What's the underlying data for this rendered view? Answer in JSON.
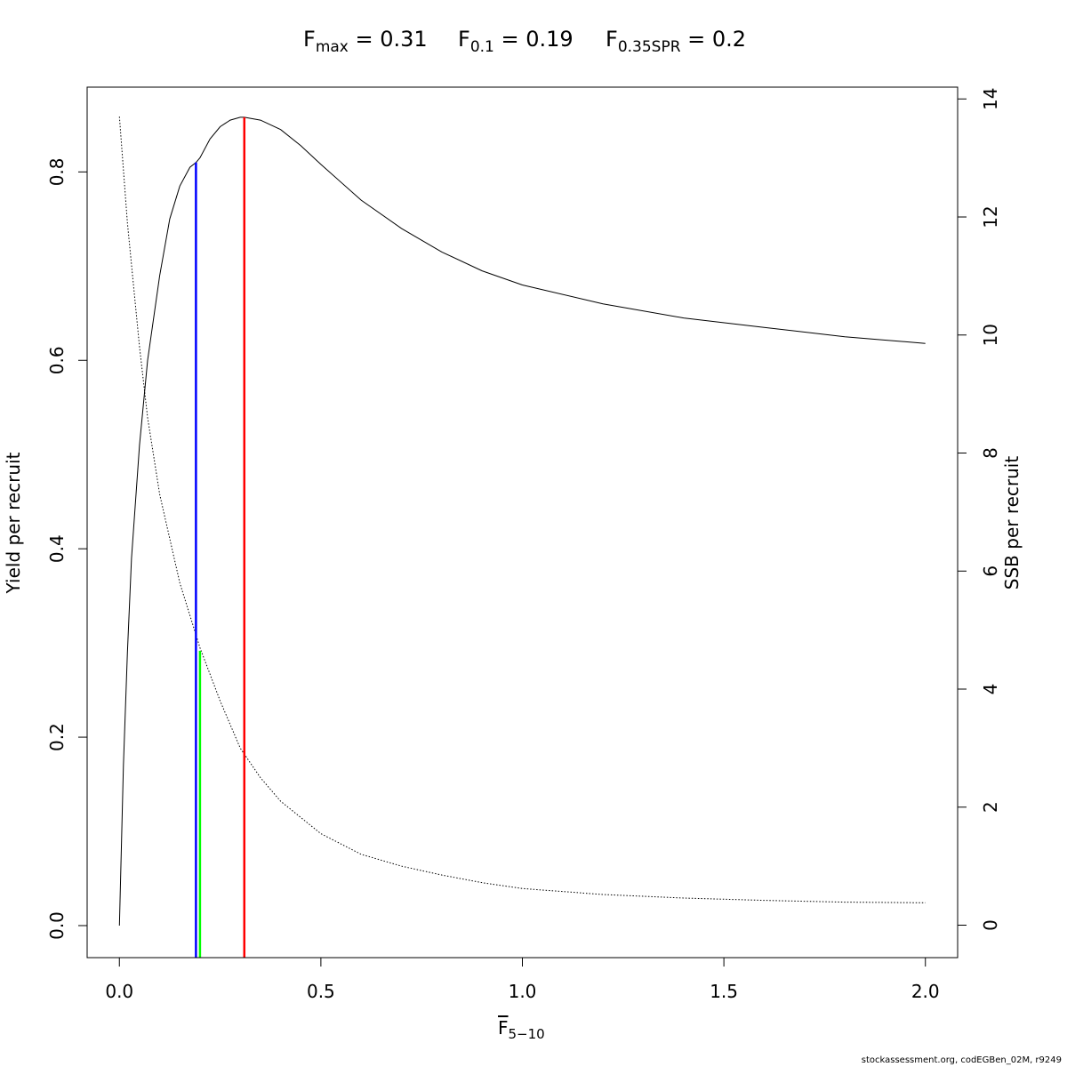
{
  "title": {
    "fmax": {
      "main": "F",
      "sub": "max",
      "value": " = 0.31"
    },
    "f01": {
      "main": "F",
      "sub": "0.1",
      "value": " = 0.19"
    },
    "fspr": {
      "main": "F",
      "sub": "0.35SPR",
      "value": " = 0.2"
    }
  },
  "footer": "stockassessment.org, codEGBen_02M, r9249",
  "chart_data": {
    "type": "line",
    "xlabel": {
      "main": "F",
      "sub": "5−10"
    },
    "ylabel": "Yield per recruit",
    "y2label": "SSB per recruit",
    "xlim": [
      -0.08,
      2.08
    ],
    "ylim": [
      -0.034,
      0.89
    ],
    "y2lim": [
      -0.55,
      14.2
    ],
    "xticks": [
      "0.0",
      "0.5",
      "1.0",
      "1.5",
      "2.0"
    ],
    "yticks": [
      "0.0",
      "0.2",
      "0.4",
      "0.6",
      "0.8"
    ],
    "y2ticks": [
      "0",
      "2",
      "4",
      "6",
      "8",
      "10",
      "12",
      "14"
    ],
    "grid": false,
    "series": [
      {
        "axis": "left",
        "style": "solid",
        "x": [
          0,
          0.01,
          0.02,
          0.03,
          0.05,
          0.07,
          0.1,
          0.125,
          0.15,
          0.175,
          0.19,
          0.2,
          0.225,
          0.25,
          0.275,
          0.3,
          0.31,
          0.35,
          0.4,
          0.45,
          0.5,
          0.6,
          0.7,
          0.8,
          0.9,
          1.0,
          1.2,
          1.4,
          1.6,
          1.8,
          2.0
        ],
        "y": [
          0,
          0.17,
          0.29,
          0.39,
          0.51,
          0.6,
          0.69,
          0.75,
          0.785,
          0.805,
          0.81,
          0.815,
          0.835,
          0.848,
          0.855,
          0.858,
          0.858,
          0.855,
          0.845,
          0.828,
          0.808,
          0.77,
          0.74,
          0.715,
          0.695,
          0.68,
          0.66,
          0.645,
          0.635,
          0.625,
          0.618
        ]
      },
      {
        "axis": "right",
        "style": "dotted",
        "x": [
          0,
          0.02,
          0.05,
          0.07,
          0.1,
          0.15,
          0.2,
          0.25,
          0.3,
          0.35,
          0.4,
          0.5,
          0.6,
          0.7,
          0.8,
          0.9,
          1.0,
          1.2,
          1.4,
          1.6,
          1.8,
          2.0
        ],
        "y": [
          13.7,
          11.9,
          9.8,
          8.6,
          7.3,
          5.8,
          4.7,
          3.8,
          3.0,
          2.5,
          2.1,
          1.55,
          1.2,
          1.0,
          0.85,
          0.72,
          0.62,
          0.52,
          0.46,
          0.42,
          0.39,
          0.38
        ]
      }
    ],
    "reference_lines": [
      {
        "x": 0.19,
        "y_top": 0.81,
        "axis": "left",
        "color": "#0000ff"
      },
      {
        "x": 0.2,
        "y_top": 4.65,
        "axis": "right",
        "color": "#00ff00"
      },
      {
        "x": 0.31,
        "y_top": 0.858,
        "axis": "left",
        "color": "#ff0000"
      }
    ]
  }
}
